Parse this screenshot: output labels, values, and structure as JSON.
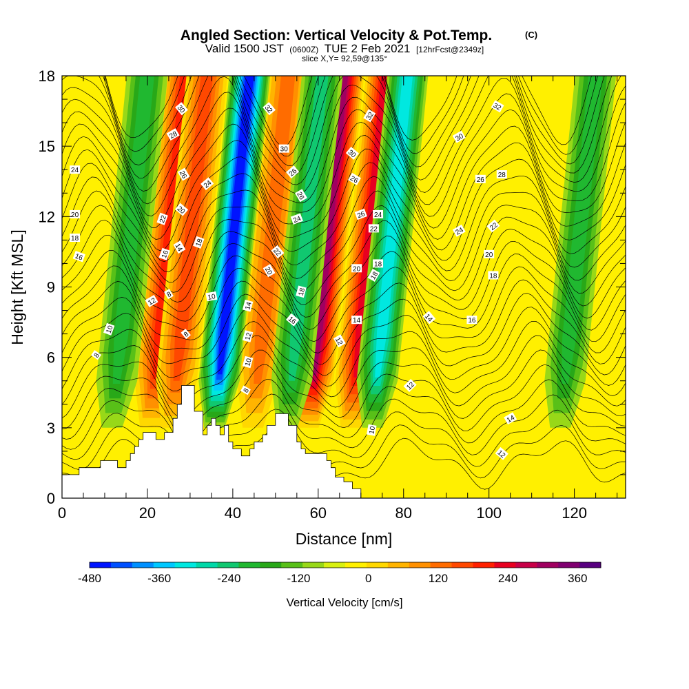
{
  "title": {
    "main": "Angled Section: Vertical Velocity & Pot.Temp.",
    "main_suffix": "(C)",
    "valid_prefix": "Valid 1500 JST",
    "valid_utc": "(0600Z)",
    "valid_date": "TUE 2 Feb 2021",
    "valid_fcst": "[12hrFcst@2349z]",
    "slice": "slice X,Y= 92,59@135°"
  },
  "chart_data": {
    "type": "heatmap",
    "xlabel": "Distance [nm]",
    "ylabel": "Height [Kft MSL]",
    "xlim": [
      0,
      132
    ],
    "ylim": [
      0,
      18
    ],
    "x_ticks": [
      "0",
      "20",
      "40",
      "60",
      "80",
      "100",
      "120"
    ],
    "y_ticks": [
      "0",
      "3",
      "6",
      "9",
      "12",
      "15",
      "18"
    ],
    "colorbar": {
      "title": "Vertical Velocity [cm/s]",
      "labels": [
        "-480",
        "-360",
        "-240",
        "-120",
        "0",
        "120",
        "240",
        "360"
      ],
      "range": [
        -480,
        400
      ],
      "step": 40,
      "colors": [
        "#0014ff",
        "#0050ff",
        "#0090ff",
        "#00c8ff",
        "#00e8e0",
        "#00d8a8",
        "#10c870",
        "#20b830",
        "#28a818",
        "#58c018",
        "#98d818",
        "#d8f010",
        "#fff000",
        "#ffd800",
        "#ffb400",
        "#ff9000",
        "#ff6c00",
        "#ff4800",
        "#ff2000",
        "#e80020",
        "#c80048",
        "#a00060",
        "#800070",
        "#580080"
      ]
    },
    "updraft_columns": [
      {
        "x": 24,
        "peak_cm_s": 240
      },
      {
        "x": 29,
        "peak_cm_s": 200
      },
      {
        "x": 48,
        "peak_cm_s": 180
      },
      {
        "x": 61,
        "peak_cm_s": 360
      },
      {
        "x": 71,
        "peak_cm_s": 280
      }
    ],
    "downdraft_columns": [
      {
        "x": 15,
        "peak_cm_s": -160
      },
      {
        "x": 39,
        "peak_cm_s": -440
      },
      {
        "x": 56,
        "peak_cm_s": -200
      },
      {
        "x": 76,
        "peak_cm_s": -280
      },
      {
        "x": 120,
        "peak_cm_s": -160
      }
    ],
    "terrain_kft": [
      [
        0,
        1.0
      ],
      [
        4,
        1.0
      ],
      [
        4,
        1.3
      ],
      [
        9,
        1.3
      ],
      [
        9,
        1.6
      ],
      [
        13,
        1.6
      ],
      [
        13,
        1.3
      ],
      [
        15,
        1.3
      ],
      [
        15,
        1.6
      ],
      [
        16,
        1.6
      ],
      [
        16,
        1.9
      ],
      [
        17,
        1.9
      ],
      [
        17,
        2.2
      ],
      [
        18,
        2.2
      ],
      [
        18,
        2.5
      ],
      [
        19,
        2.5
      ],
      [
        19,
        2.8
      ],
      [
        22,
        2.8
      ],
      [
        22,
        2.5
      ],
      [
        24,
        2.5
      ],
      [
        24,
        2.8
      ],
      [
        26,
        2.8
      ],
      [
        26,
        3.4
      ],
      [
        27,
        3.4
      ],
      [
        27,
        4.0
      ],
      [
        28,
        4.0
      ],
      [
        28,
        4.8
      ],
      [
        31,
        4.8
      ],
      [
        31,
        3.7
      ],
      [
        33,
        3.7
      ],
      [
        33,
        2.7
      ],
      [
        34,
        2.7
      ],
      [
        34,
        3.1
      ],
      [
        35,
        3.1
      ],
      [
        35,
        3.4
      ],
      [
        36,
        3.4
      ],
      [
        36,
        3.1
      ],
      [
        37,
        3.1
      ],
      [
        37,
        2.7
      ],
      [
        38,
        2.7
      ],
      [
        38,
        3.1
      ],
      [
        39,
        3.1
      ],
      [
        39,
        2.4
      ],
      [
        40,
        2.4
      ],
      [
        40,
        2.1
      ],
      [
        42,
        2.1
      ],
      [
        42,
        1.8
      ],
      [
        44,
        1.8
      ],
      [
        44,
        2.1
      ],
      [
        45,
        2.1
      ],
      [
        45,
        2.4
      ],
      [
        47,
        2.4
      ],
      [
        47,
        2.7
      ],
      [
        48,
        2.7
      ],
      [
        48,
        3.1
      ],
      [
        50,
        3.1
      ],
      [
        50,
        3.6
      ],
      [
        53,
        3.6
      ],
      [
        53,
        3.1
      ],
      [
        55,
        3.1
      ],
      [
        55,
        2.4
      ],
      [
        56,
        2.4
      ],
      [
        56,
        2.1
      ],
      [
        57,
        2.1
      ],
      [
        57,
        1.9
      ],
      [
        62,
        1.9
      ],
      [
        62,
        1.6
      ],
      [
        63,
        1.6
      ],
      [
        63,
        1.3
      ],
      [
        64,
        1.3
      ],
      [
        64,
        0.9
      ],
      [
        66,
        0.9
      ],
      [
        66,
        0.7
      ],
      [
        68,
        0.7
      ],
      [
        68,
        0.4
      ],
      [
        70,
        0.4
      ],
      [
        70,
        0
      ]
    ],
    "contour_labels": [
      {
        "x": 8,
        "y": 6.1,
        "text": "8",
        "angle": -55
      },
      {
        "x": 11,
        "y": 7.2,
        "text": "10",
        "angle": -70
      },
      {
        "x": 21,
        "y": 8.4,
        "text": "12",
        "angle": -30
      },
      {
        "x": 25,
        "y": 8.7,
        "text": "8",
        "angle": -30
      },
      {
        "x": 29,
        "y": 7.0,
        "text": "8",
        "angle": -40
      },
      {
        "x": 35,
        "y": 8.6,
        "text": "10",
        "angle": -10
      },
      {
        "x": 24,
        "y": 10.4,
        "text": "16",
        "angle": -70
      },
      {
        "x": 27.5,
        "y": 10.7,
        "text": "14",
        "angle": 60
      },
      {
        "x": 23.5,
        "y": 11.9,
        "text": "22",
        "angle": -70
      },
      {
        "x": 28,
        "y": 12.3,
        "text": "20",
        "angle": 40
      },
      {
        "x": 32,
        "y": 10.9,
        "text": "18",
        "angle": -70
      },
      {
        "x": 28.5,
        "y": 13.8,
        "text": "26",
        "angle": 60
      },
      {
        "x": 34,
        "y": 13.4,
        "text": "24",
        "angle": -40
      },
      {
        "x": 26,
        "y": 15.5,
        "text": "28",
        "angle": -30
      },
      {
        "x": 28,
        "y": 16.6,
        "text": "30",
        "angle": 50
      },
      {
        "x": 3,
        "y": 14.0,
        "text": "24",
        "angle": 0
      },
      {
        "x": 3,
        "y": 12.1,
        "text": "20",
        "angle": 0
      },
      {
        "x": 3,
        "y": 11.1,
        "text": "18",
        "angle": 0
      },
      {
        "x": 4,
        "y": 10.3,
        "text": "16",
        "angle": 20
      },
      {
        "x": 43,
        "y": 4.6,
        "text": "8",
        "angle": -60
      },
      {
        "x": 43.5,
        "y": 5.8,
        "text": "10",
        "angle": -75
      },
      {
        "x": 43.5,
        "y": 6.9,
        "text": "12",
        "angle": -75
      },
      {
        "x": 43.5,
        "y": 8.2,
        "text": "14",
        "angle": -75
      },
      {
        "x": 48.5,
        "y": 9.7,
        "text": "20",
        "angle": 60
      },
      {
        "x": 50.5,
        "y": 10.5,
        "text": "22",
        "angle": 50
      },
      {
        "x": 54,
        "y": 7.6,
        "text": "16",
        "angle": 40
      },
      {
        "x": 56,
        "y": 8.8,
        "text": "18",
        "angle": -75
      },
      {
        "x": 55,
        "y": 11.9,
        "text": "24",
        "angle": -20
      },
      {
        "x": 56,
        "y": 12.9,
        "text": "26",
        "angle": 60
      },
      {
        "x": 54,
        "y": 13.9,
        "text": "26",
        "angle": -40
      },
      {
        "x": 52,
        "y": 14.9,
        "text": "30",
        "angle": 0
      },
      {
        "x": 48.5,
        "y": 16.6,
        "text": "32",
        "angle": 50
      },
      {
        "x": 65,
        "y": 6.7,
        "text": "12",
        "angle": 60
      },
      {
        "x": 69,
        "y": 7.6,
        "text": "14",
        "angle": 0
      },
      {
        "x": 69,
        "y": 9.8,
        "text": "20",
        "angle": 0
      },
      {
        "x": 73,
        "y": 9.5,
        "text": "18",
        "angle": -60
      },
      {
        "x": 74,
        "y": 10.0,
        "text": "18",
        "angle": 0
      },
      {
        "x": 73,
        "y": 11.5,
        "text": "22",
        "angle": 0
      },
      {
        "x": 70,
        "y": 12.1,
        "text": "26",
        "angle": -20
      },
      {
        "x": 74,
        "y": 12.1,
        "text": "24",
        "angle": 0
      },
      {
        "x": 68.5,
        "y": 13.6,
        "text": "26",
        "angle": 30
      },
      {
        "x": 68,
        "y": 14.7,
        "text": "30",
        "angle": 40
      },
      {
        "x": 72,
        "y": 16.3,
        "text": "32",
        "angle": -60
      },
      {
        "x": 72.5,
        "y": 2.9,
        "text": "10",
        "angle": -80
      },
      {
        "x": 81.5,
        "y": 4.8,
        "text": "12",
        "angle": -45
      },
      {
        "x": 86,
        "y": 7.7,
        "text": "14",
        "angle": 50
      },
      {
        "x": 96,
        "y": 7.6,
        "text": "16",
        "angle": 0
      },
      {
        "x": 101,
        "y": 9.5,
        "text": "18",
        "angle": 0
      },
      {
        "x": 100,
        "y": 10.4,
        "text": "20",
        "angle": 0
      },
      {
        "x": 101,
        "y": 11.6,
        "text": "22",
        "angle": -40
      },
      {
        "x": 93,
        "y": 11.4,
        "text": "24",
        "angle": -30
      },
      {
        "x": 98,
        "y": 13.6,
        "text": "26",
        "angle": 0
      },
      {
        "x": 103,
        "y": 13.8,
        "text": "28",
        "angle": 0
      },
      {
        "x": 93,
        "y": 15.4,
        "text": "30",
        "angle": -30
      },
      {
        "x": 102,
        "y": 16.7,
        "text": "32",
        "angle": 30
      },
      {
        "x": 105,
        "y": 3.4,
        "text": "14",
        "angle": -30
      },
      {
        "x": 103,
        "y": 1.9,
        "text": "12",
        "angle": 40
      }
    ]
  }
}
